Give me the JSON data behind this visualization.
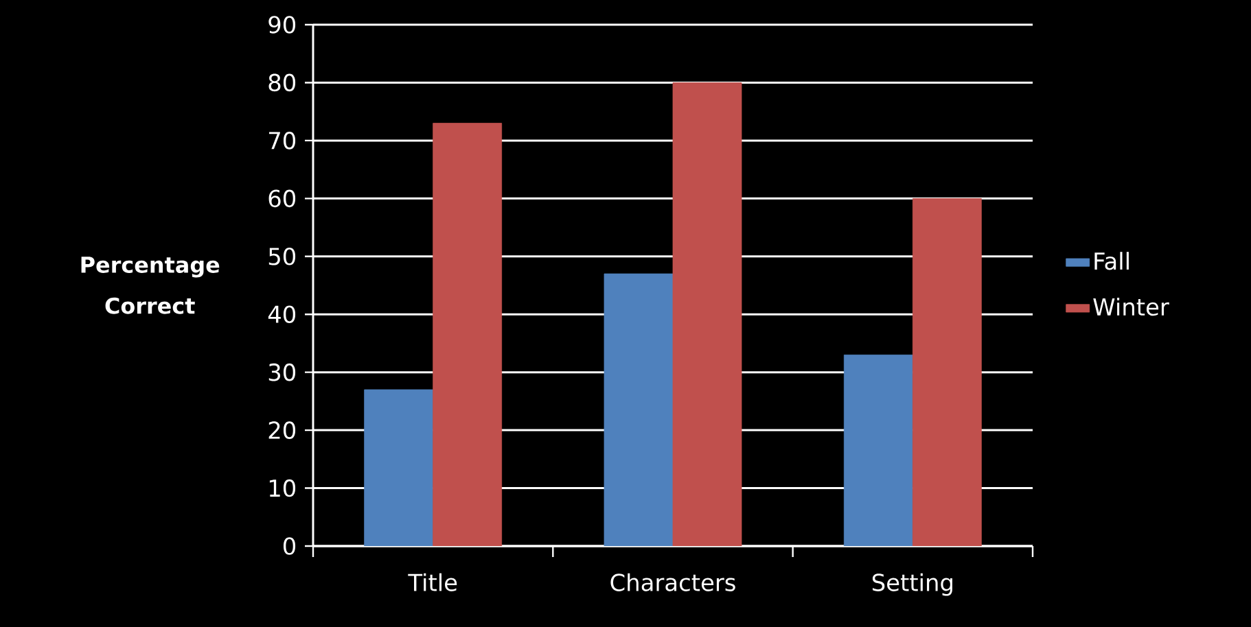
{
  "chart_data": {
    "type": "bar",
    "ylabel": "Percentage Correct",
    "categories": [
      "Title",
      "Characters",
      "Setting"
    ],
    "series": [
      {
        "name": "Fall",
        "color": "#4f81bd",
        "values": [
          27,
          47,
          33
        ]
      },
      {
        "name": "Winter",
        "color": "#c0504d",
        "values": [
          73,
          80,
          60
        ]
      }
    ],
    "ylim": [
      0,
      90
    ],
    "yticks": [
      0,
      10,
      20,
      30,
      40,
      50,
      60,
      70,
      80,
      90
    ],
    "grid": "y",
    "legend": "right"
  }
}
